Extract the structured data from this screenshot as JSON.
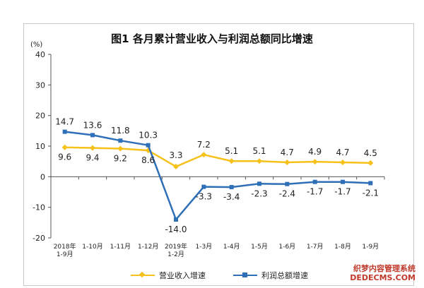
{
  "chart_data": {
    "type": "line",
    "title": "图1 各月累计营业收入与利润总额同比增速",
    "unit": "(%)",
    "ylim": [
      -20,
      40
    ],
    "yticks": [
      "40",
      "30",
      "20",
      "10",
      "0",
      "-10",
      "-20"
    ],
    "grid": false,
    "legend_position": "bottom",
    "categories": [
      [
        "2018年",
        "1-9月"
      ],
      [
        "1-10月"
      ],
      [
        "1-11月"
      ],
      [
        "1-12月"
      ],
      [
        "2019年",
        "1-2月"
      ],
      [
        "1-3月"
      ],
      [
        "1-4月"
      ],
      [
        "1-5月"
      ],
      [
        "1-6月"
      ],
      [
        "1-7月"
      ],
      [
        "1-8月"
      ],
      [
        "1-9月"
      ]
    ],
    "series": [
      {
        "name": "营业收入增速",
        "color": "#f5c11a",
        "marker": "diamond",
        "values": [
          9.6,
          9.4,
          9.2,
          8.6,
          3.3,
          7.2,
          5.1,
          5.1,
          4.7,
          4.9,
          4.7,
          4.5
        ],
        "labels": [
          "9.6",
          "9.4",
          "9.2",
          "8.6",
          "3.3",
          "7.2",
          "5.1",
          "5.1",
          "4.7",
          "4.9",
          "4.7",
          "4.5"
        ]
      },
      {
        "name": "利润总额增速",
        "color": "#2e6fb7",
        "marker": "square",
        "values": [
          14.7,
          13.6,
          11.8,
          10.3,
          -14.0,
          -3.3,
          -3.4,
          -2.3,
          -2.4,
          -1.7,
          -1.7,
          -2.1
        ],
        "labels": [
          "14.7",
          "13.6",
          "11.8",
          "10.3",
          "-14.0",
          "-3.3",
          "-3.4",
          "-2.3",
          "-2.4",
          "-1.7",
          "-1.7",
          "-2.1"
        ]
      }
    ]
  },
  "watermark": {
    "line1": "织梦内容管理系统",
    "line2": "DEDECMS.COM"
  }
}
